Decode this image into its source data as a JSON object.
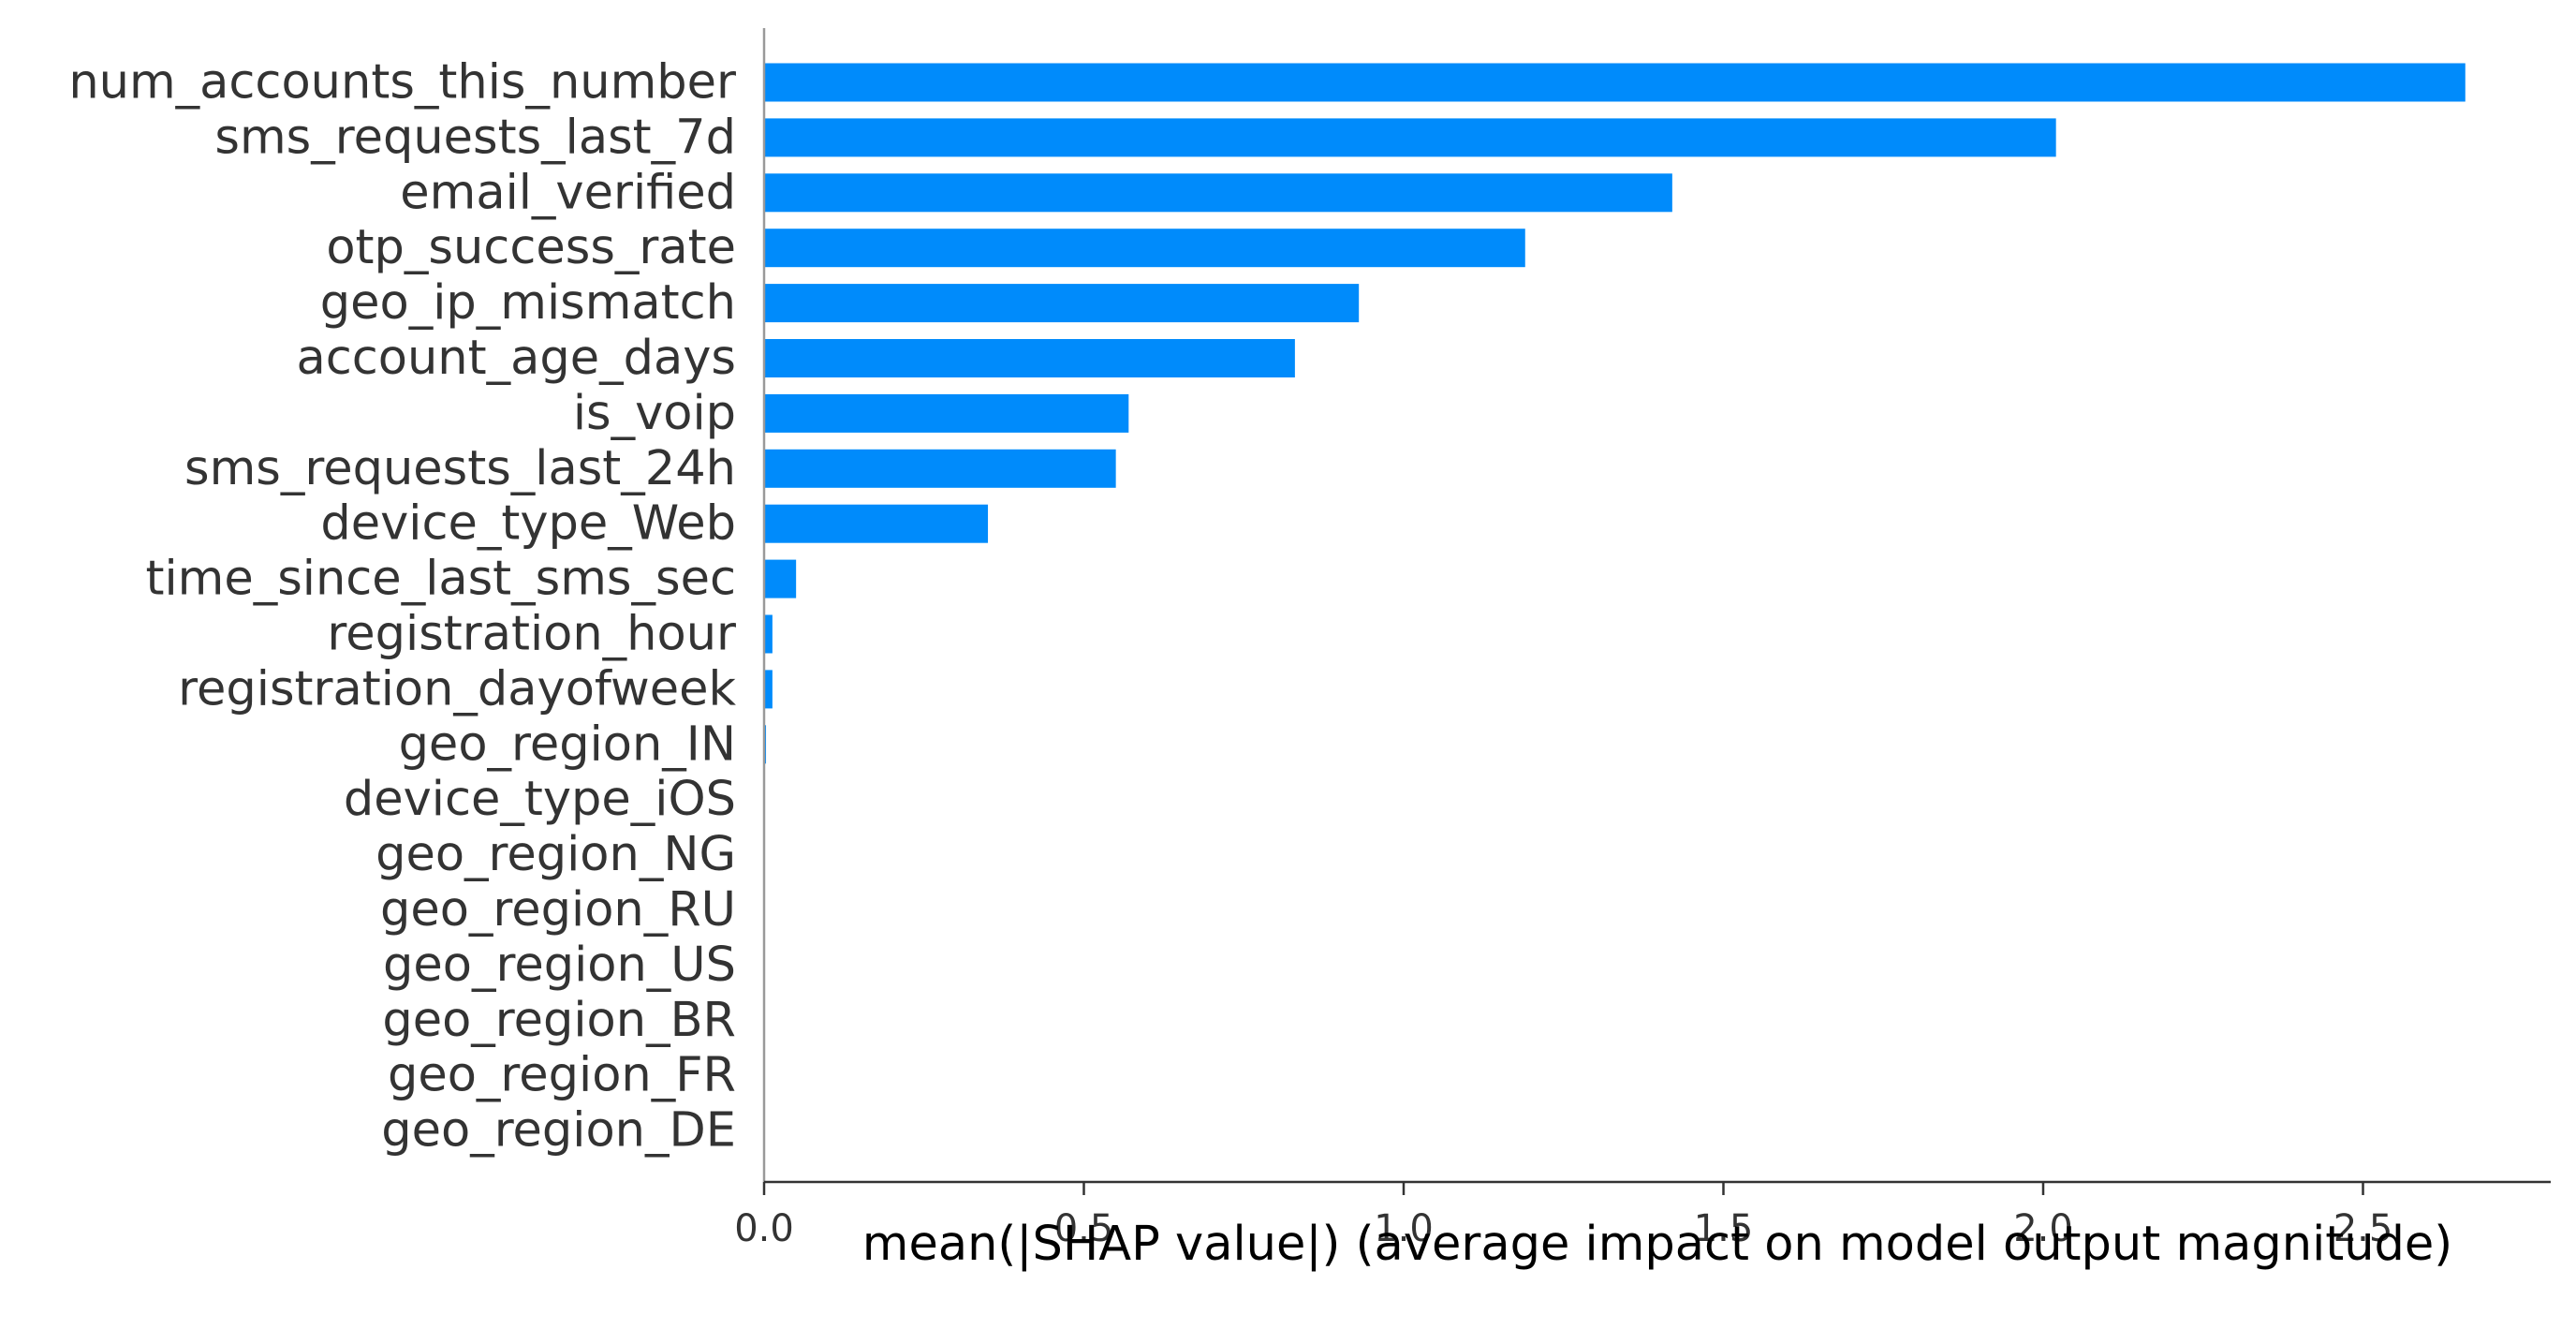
{
  "chart_data": {
    "type": "bar",
    "orientation": "horizontal",
    "categories": [
      "num_accounts_this_number",
      "sms_requests_last_7d",
      "email_verified",
      "otp_success_rate",
      "geo_ip_mismatch",
      "account_age_days",
      "is_voip",
      "sms_requests_last_24h",
      "device_type_Web",
      "time_since_last_sms_sec",
      "registration_hour",
      "registration_dayofweek",
      "geo_region_IN",
      "device_type_iOS",
      "geo_region_NG",
      "geo_region_RU",
      "geo_region_US",
      "geo_region_BR",
      "geo_region_FR",
      "geo_region_DE"
    ],
    "values": [
      2.66,
      2.02,
      1.42,
      1.19,
      0.93,
      0.83,
      0.57,
      0.55,
      0.35,
      0.05,
      0.013,
      0.013,
      0.003,
      0,
      0,
      0,
      0,
      0,
      0,
      0
    ],
    "xlabel": "mean(|SHAP value|) (average impact on model output magnitude)",
    "xlim": [
      0,
      2.8
    ],
    "xticks": [
      0.0,
      0.5,
      1.0,
      1.5,
      2.0,
      2.5
    ],
    "xtick_labels": [
      "0.0",
      "0.5",
      "1.0",
      "1.5",
      "2.0",
      "2.5"
    ],
    "grid": false,
    "colors": {
      "bar": "#008bfb",
      "text": "#333333",
      "axis": "#333333",
      "xlabel": "#000000"
    }
  }
}
